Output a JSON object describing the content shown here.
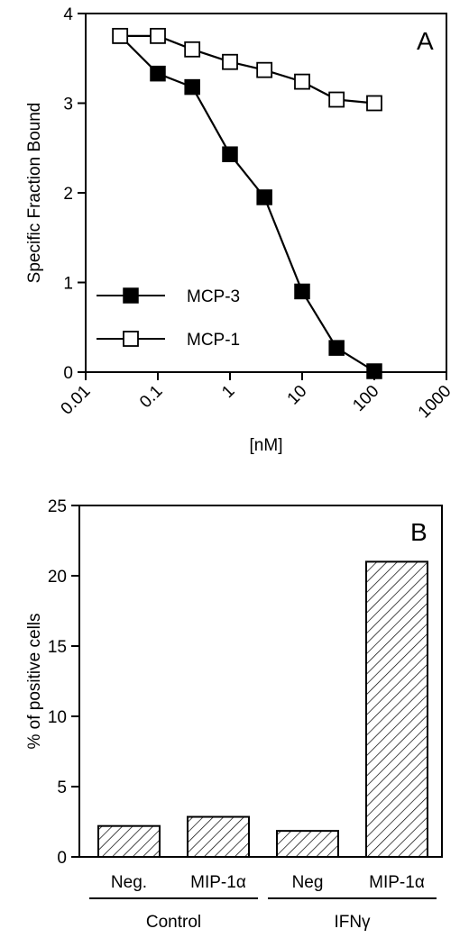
{
  "chart_data": [
    {
      "panel": "A",
      "type": "line",
      "xlabel": "[nM]",
      "ylabel": "Specific Fraction Bound",
      "xscale": "log",
      "xlim": [
        0.01,
        1000
      ],
      "ylim": [
        0,
        4
      ],
      "x_ticks": [
        "0.01",
        "0.1",
        "1",
        "10",
        "100",
        "1000"
      ],
      "y_ticks": [
        "0",
        "1",
        "2",
        "3",
        "4"
      ],
      "grid": false,
      "legend_position": "bottom-left",
      "series": [
        {
          "name": "MCP-3",
          "marker": "filled-square",
          "x": [
            0.03,
            0.1,
            0.3,
            1,
            3,
            10,
            30,
            100
          ],
          "y": [
            3.75,
            3.33,
            3.18,
            2.43,
            1.95,
            0.9,
            0.27,
            0.01
          ]
        },
        {
          "name": "MCP-1",
          "marker": "open-square",
          "x": [
            0.03,
            0.1,
            0.3,
            1,
            3,
            10,
            30,
            100
          ],
          "y": [
            3.75,
            3.75,
            3.6,
            3.46,
            3.37,
            3.24,
            3.04,
            3.0
          ]
        }
      ]
    },
    {
      "panel": "B",
      "type": "bar",
      "ylabel": "% of positive cells",
      "ylim": [
        0,
        25
      ],
      "y_ticks": [
        "0",
        "5",
        "10",
        "15",
        "20",
        "25"
      ],
      "grid": false,
      "fill": "diagonal-hatch",
      "categories": [
        "Neg.",
        "MIP-1α",
        "Neg",
        "MIP-1α"
      ],
      "groups": [
        {
          "label": "Control",
          "categories": [
            0,
            1
          ]
        },
        {
          "label": "IFNγ",
          "categories": [
            2,
            3
          ]
        }
      ],
      "values": [
        2.2,
        2.85,
        1.85,
        21.0
      ]
    }
  ]
}
